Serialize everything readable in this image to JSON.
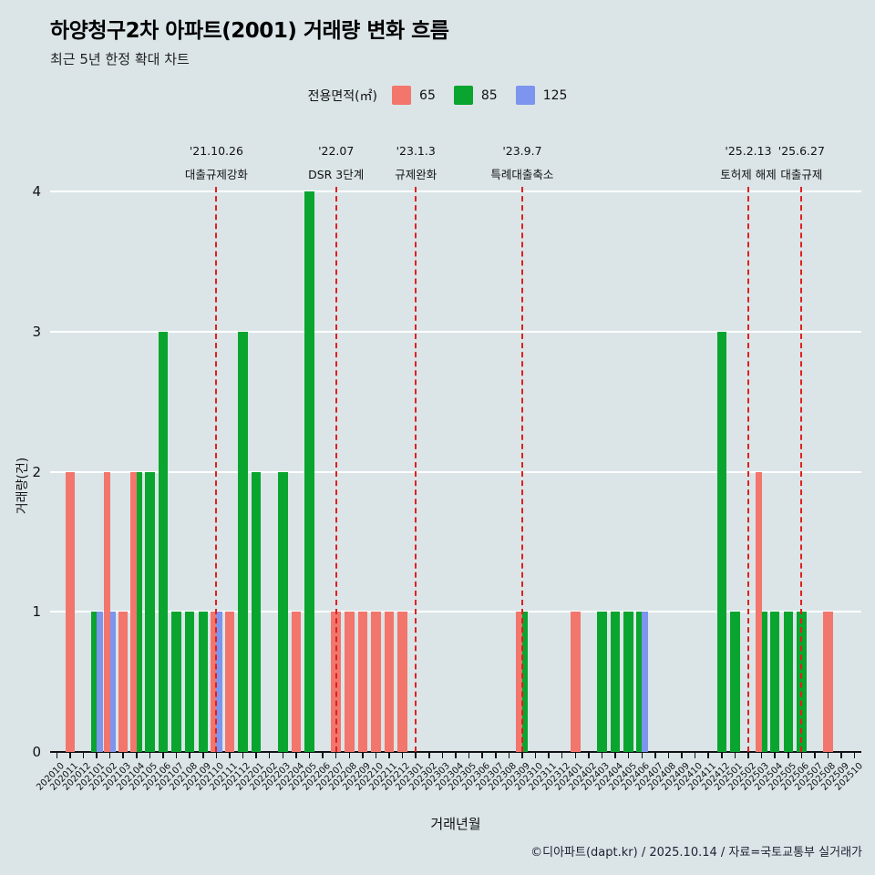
{
  "title": "하양청구2차 아파트(2001) 거래량 변화 흐름",
  "subtitle": "최근 5년 한정 확대 차트",
  "legend": {
    "label": "전용면적(㎡)"
  },
  "footer": "©디아파트(dapt.kr) / 2025.10.14 / 자료=국토교통부 실거래가",
  "colors": {
    "background": "#dbe5e8",
    "gridline": "#ffffff",
    "axis": "#111111",
    "event_line": "#e01f1f",
    "series_65": "#f2766c",
    "series_85": "#09a52f",
    "series_125": "#7d95ee"
  },
  "chart_data": {
    "type": "bar",
    "title": "하양청구2차 아파트(2001) 거래량 변화 흐름",
    "xlabel": "거래년월",
    "ylabel": "거래량(건)",
    "ylim": [
      0,
      4
    ],
    "yticks": [
      0,
      1,
      2,
      3,
      4
    ],
    "grid": true,
    "legend_position": "top-center",
    "categories": [
      "202010",
      "202011",
      "202012",
      "202101",
      "202102",
      "202103",
      "202104",
      "202105",
      "202106",
      "202107",
      "202108",
      "202109",
      "202110",
      "202111",
      "202112",
      "202201",
      "202202",
      "202203",
      "202204",
      "202205",
      "202206",
      "202207",
      "202208",
      "202209",
      "202210",
      "202211",
      "202212",
      "202301",
      "202302",
      "202303",
      "202304",
      "202305",
      "202306",
      "202307",
      "202308",
      "202309",
      "202310",
      "202311",
      "202312",
      "202401",
      "202402",
      "202403",
      "202404",
      "202405",
      "202406",
      "202407",
      "202408",
      "202409",
      "202410",
      "202411",
      "202412",
      "202501",
      "202502",
      "202503",
      "202504",
      "202505",
      "202506",
      "202507",
      "202508",
      "202509",
      "202510"
    ],
    "series": [
      {
        "name": "65",
        "color": "#f2766c",
        "values": [
          0,
          2,
          0,
          0,
          2,
          1,
          2,
          0,
          0,
          0,
          0,
          0,
          1,
          1,
          0,
          0,
          0,
          0,
          1,
          0,
          0,
          1,
          1,
          1,
          1,
          1,
          1,
          0,
          0,
          0,
          0,
          0,
          0,
          0,
          0,
          1,
          0,
          0,
          0,
          1,
          0,
          0,
          0,
          0,
          0,
          0,
          0,
          0,
          0,
          0,
          0,
          0,
          0,
          2,
          0,
          0,
          0,
          0,
          1,
          0,
          0
        ]
      },
      {
        "name": "85",
        "color": "#09a52f",
        "values": [
          0,
          0,
          0,
          1,
          0,
          0,
          2,
          2,
          3,
          1,
          1,
          1,
          0,
          0,
          3,
          2,
          0,
          2,
          0,
          4,
          0,
          0,
          0,
          0,
          0,
          0,
          0,
          0,
          0,
          0,
          0,
          0,
          0,
          0,
          0,
          1,
          0,
          0,
          0,
          0,
          0,
          1,
          1,
          1,
          1,
          0,
          0,
          0,
          0,
          0,
          3,
          1,
          0,
          1,
          1,
          1,
          1,
          0,
          0,
          0,
          0
        ]
      },
      {
        "name": "125",
        "color": "#7d95ee",
        "values": [
          0,
          0,
          0,
          1,
          1,
          0,
          0,
          0,
          0,
          0,
          0,
          0,
          1,
          0,
          0,
          0,
          0,
          0,
          0,
          0,
          0,
          0,
          0,
          0,
          0,
          0,
          0,
          0,
          0,
          0,
          0,
          0,
          0,
          0,
          0,
          0,
          0,
          0,
          0,
          0,
          0,
          0,
          0,
          0,
          1,
          0,
          0,
          0,
          0,
          0,
          0,
          0,
          0,
          0,
          0,
          0,
          0,
          0,
          0,
          0,
          0
        ]
      }
    ],
    "annotations": [
      {
        "month": "202110",
        "date": "'21.10.26",
        "label": "대출규제강화"
      },
      {
        "month": "202207",
        "date": "'22.07",
        "label": "DSR 3단계"
      },
      {
        "month": "202301",
        "date": "'23.1.3",
        "label": "규제완화"
      },
      {
        "month": "202309",
        "date": "'23.9.7",
        "label": "특례대출축소"
      },
      {
        "month": "202502",
        "date": "'25.2.13",
        "label": "토허제 해제"
      },
      {
        "month": "202506",
        "date": "'25.6.27",
        "label": "대출규제"
      }
    ]
  }
}
